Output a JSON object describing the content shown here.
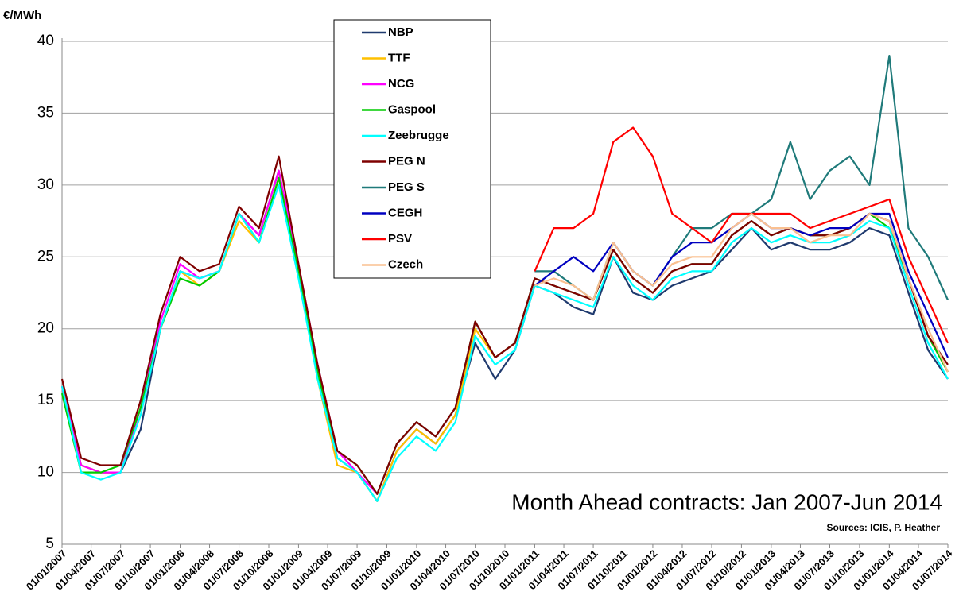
{
  "chart_data": {
    "type": "line",
    "y_label": "€/MWh",
    "annotations": [
      "Month Ahead contracts: Jan 2007-Jun 2014",
      "Sources: ICIS, P. Heather"
    ],
    "x": [
      "01/01/2007",
      "01/03/2007",
      "01/05/2007",
      "01/07/2007",
      "01/09/2007",
      "01/11/2007",
      "01/01/2008",
      "01/03/2008",
      "01/05/2008",
      "01/07/2008",
      "01/09/2008",
      "01/11/2008",
      "01/01/2009",
      "01/03/2009",
      "01/05/2009",
      "01/07/2009",
      "01/09/2009",
      "01/11/2009",
      "01/01/2010",
      "01/03/2010",
      "01/05/2010",
      "01/07/2010",
      "01/09/2010",
      "01/11/2010",
      "01/01/2011",
      "01/03/2011",
      "01/05/2011",
      "01/07/2011",
      "01/09/2011",
      "01/11/2011",
      "01/01/2012",
      "01/03/2012",
      "01/05/2012",
      "01/07/2012",
      "01/09/2012",
      "01/11/2012",
      "01/01/2013",
      "01/03/2013",
      "01/05/2013",
      "01/07/2013",
      "01/09/2013",
      "01/11/2013",
      "01/01/2014",
      "01/03/2014",
      "01/05/2014",
      "01/07/2014"
    ],
    "series": [
      {
        "name": "NBP",
        "color": "#1f3a6e",
        "values": [
          16,
          10.5,
          10,
          10,
          13,
          20,
          24,
          23.5,
          24,
          28,
          26.5,
          31,
          24,
          17,
          11,
          10,
          8,
          11.5,
          13,
          12,
          14,
          19,
          16.5,
          18.5,
          23,
          22.5,
          21.5,
          21,
          25,
          22.5,
          22,
          23,
          23.5,
          24,
          25.5,
          27,
          25.5,
          26,
          25.5,
          25.5,
          26,
          27,
          26.5,
          22.5,
          18.5,
          16.5
        ]
      },
      {
        "name": "TTF",
        "color": "#ffc000",
        "values": [
          16,
          10.5,
          10,
          10,
          14.5,
          20,
          24,
          23,
          24,
          27.5,
          26,
          30.5,
          24,
          16.5,
          10.5,
          10,
          8,
          11.5,
          13,
          12,
          14,
          20,
          18,
          19,
          23.5,
          23,
          22.5,
          22,
          25.5,
          23.5,
          22.5,
          24,
          24.5,
          24.5,
          26.5,
          27.5,
          26.5,
          27,
          26.5,
          26.5,
          27,
          28,
          27.5,
          23.5,
          19.5,
          17
        ]
      },
      {
        "name": "NCG",
        "color": "#ff00ff",
        "values": [
          16,
          10.5,
          10,
          10,
          14.5,
          20.5,
          24.5,
          23.5,
          24,
          28,
          26.5,
          31,
          24.5,
          17.5,
          11.5,
          10,
          8.5,
          12,
          13.5,
          12.5,
          14.5,
          20.5,
          18,
          19,
          23.5,
          23,
          22.5,
          22,
          25.5,
          23.5,
          22.5,
          24,
          24.5,
          24.5,
          26.5,
          27.5,
          26.5,
          27,
          26.5,
          26.5,
          27,
          28,
          27.5,
          23.5,
          19.5,
          17
        ]
      },
      {
        "name": "Gaspool",
        "color": "#00cc00",
        "values": [
          15.5,
          10,
          10,
          10.5,
          14.5,
          20,
          23.5,
          23,
          24,
          28,
          26,
          30.5,
          24,
          17,
          11.5,
          10.5,
          8.5,
          12,
          13.5,
          12.5,
          14.5,
          20.5,
          18,
          19,
          23.5,
          23,
          22.5,
          22,
          25.5,
          23.5,
          22.5,
          24,
          24.5,
          24.5,
          26.5,
          27.5,
          26.5,
          27,
          26.5,
          26.5,
          27,
          28,
          27,
          23.5,
          19.5,
          17
        ]
      },
      {
        "name": "Zeebrugge",
        "color": "#00ffff",
        "values": [
          16,
          10,
          9.5,
          10,
          14,
          20,
          24,
          23.5,
          24,
          28,
          26,
          30,
          23.5,
          16.5,
          11,
          10,
          8,
          11,
          12.5,
          11.5,
          13.5,
          19.5,
          17.5,
          18.5,
          23,
          22.5,
          22,
          21.5,
          25,
          23,
          22,
          23.5,
          24,
          24,
          26,
          27,
          26,
          26.5,
          26,
          26,
          26.5,
          27.5,
          27,
          23,
          19,
          16.5
        ]
      },
      {
        "name": "PEG N",
        "color": "#7f0000",
        "values": [
          16.5,
          11,
          10.5,
          10.5,
          15,
          21,
          25,
          24,
          24.5,
          28.5,
          27,
          32,
          24.5,
          17.5,
          11.5,
          10.5,
          8.5,
          12,
          13.5,
          12.5,
          14.5,
          20.5,
          18,
          19,
          23.5,
          23,
          22.5,
          22,
          25.5,
          23.5,
          22.5,
          24,
          24.5,
          24.5,
          26.5,
          27.5,
          26.5,
          27,
          26.5,
          26.5,
          27,
          28,
          27.5,
          23.5,
          19.5,
          17.5
        ]
      },
      {
        "name": "PEG S",
        "color": "#1f7a7a",
        "values": [
          null,
          null,
          null,
          null,
          null,
          null,
          null,
          null,
          null,
          null,
          null,
          null,
          null,
          null,
          null,
          null,
          null,
          null,
          null,
          null,
          null,
          null,
          null,
          null,
          24,
          24,
          23,
          22,
          26,
          24,
          23,
          25,
          27,
          27,
          28,
          28,
          29,
          33,
          29,
          31,
          32,
          30,
          39,
          27,
          25,
          22
        ]
      },
      {
        "name": "CEGH",
        "color": "#0000c0",
        "values": [
          null,
          null,
          null,
          null,
          null,
          null,
          null,
          null,
          null,
          null,
          null,
          null,
          null,
          null,
          null,
          null,
          null,
          null,
          null,
          null,
          null,
          null,
          null,
          null,
          23,
          24,
          25,
          24,
          26,
          24,
          23,
          25,
          26,
          26,
          27,
          28,
          27,
          27,
          26.5,
          27,
          27,
          28,
          28,
          24,
          21,
          18
        ]
      },
      {
        "name": "PSV",
        "color": "#ff0000",
        "values": [
          null,
          null,
          null,
          null,
          null,
          null,
          null,
          null,
          null,
          null,
          null,
          null,
          null,
          null,
          null,
          null,
          null,
          null,
          null,
          null,
          null,
          null,
          null,
          null,
          24,
          27,
          27,
          28,
          33,
          34,
          32,
          28,
          27,
          26,
          28,
          28,
          28,
          28,
          27,
          27.5,
          28,
          28.5,
          29,
          25,
          22,
          19
        ]
      },
      {
        "name": "Czech",
        "color": "#fac090",
        "values": [
          null,
          null,
          null,
          null,
          null,
          null,
          null,
          null,
          null,
          null,
          null,
          null,
          null,
          null,
          null,
          null,
          null,
          null,
          null,
          null,
          null,
          null,
          null,
          null,
          23,
          23.5,
          23,
          22,
          26,
          24,
          23,
          24.5,
          25,
          25,
          27,
          28,
          27,
          27,
          26,
          26.5,
          26.5,
          28,
          27.5,
          23.5,
          20,
          17
        ]
      }
    ],
    "xlim": [
      "01/01/2007",
      "01/07/2014"
    ],
    "xticks": [
      "01/01/2007",
      "01/04/2007",
      "01/07/2007",
      "01/10/2007",
      "01/01/2008",
      "01/04/2008",
      "01/07/2008",
      "01/10/2008",
      "01/01/2009",
      "01/04/2009",
      "01/07/2009",
      "01/10/2009",
      "01/01/2010",
      "01/04/2010",
      "01/07/2010",
      "01/10/2010",
      "01/01/2011",
      "01/04/2011",
      "01/07/2011",
      "01/10/2011",
      "01/01/2012",
      "01/04/2012",
      "01/07/2012",
      "01/10/2012",
      "01/01/2013",
      "01/04/2013",
      "01/07/2013",
      "01/10/2013",
      "01/01/2014",
      "01/04/2014",
      "01/07/2014"
    ],
    "ylim": [
      5,
      40
    ],
    "yticks": [
      5,
      10,
      15,
      20,
      25,
      30,
      35,
      40
    ],
    "grid": true
  }
}
